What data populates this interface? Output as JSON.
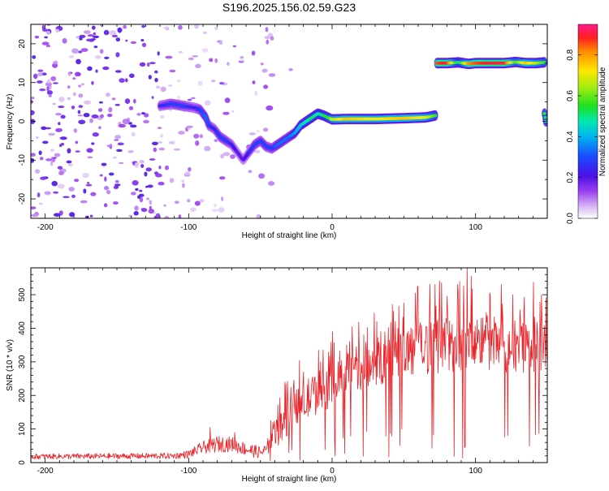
{
  "title": "S196.2025.156.02.59.G23",
  "chart_data": [
    {
      "type": "heatmap",
      "xlabel": "Height of straight line (km)",
      "ylabel": "Frequency (Hz)",
      "xlim": [
        -210,
        150
      ],
      "ylim": [
        -25,
        25
      ],
      "x_ticks": [
        -200,
        -100,
        0,
        100
      ],
      "x_minor_step": 10,
      "y_ticks": [
        -20,
        -10,
        0,
        10,
        20
      ],
      "y_minor_step": 5,
      "colorbar": {
        "label": "Normalized spectral amplitude",
        "range": [
          0.0,
          0.95
        ],
        "ticks": [
          0.0,
          0.2,
          0.4,
          0.6,
          0.8
        ],
        "colormap": "rainbow (white-violet-blue-cyan-green-yellow-red)"
      },
      "traces": [
        {
          "points": [
            [
              -120,
              4
            ],
            [
              -112,
              4.5
            ],
            [
              -104,
              4
            ],
            [
              -96,
              3.5
            ],
            [
              -92,
              3
            ],
            [
              -88,
              1
            ],
            [
              -86,
              -1
            ],
            [
              -82,
              -2
            ],
            [
              -78,
              -4
            ],
            [
              -74,
              -5
            ],
            [
              -70,
              -6
            ],
            [
              -66,
              -8
            ],
            [
              -62,
              -10
            ],
            [
              -58,
              -8
            ],
            [
              -54,
              -6
            ],
            [
              -50,
              -5
            ],
            [
              -46,
              -6.5
            ],
            [
              -42,
              -7
            ],
            [
              -38,
              -6
            ],
            [
              -34,
              -5
            ],
            [
              -30,
              -4
            ],
            [
              -26,
              -3
            ],
            [
              -22,
              -1
            ],
            [
              -18,
              0
            ],
            [
              -14,
              1
            ],
            [
              -10,
              2
            ],
            [
              -6,
              1.5
            ],
            [
              -2,
              0.8
            ],
            [
              0,
              0.5
            ],
            [
              10,
              0.6
            ],
            [
              30,
              0.6
            ],
            [
              50,
              0.8
            ],
            [
              65,
              1
            ],
            [
              72,
              1.5
            ]
          ],
          "amplitude": [
            0.25,
            0.3,
            0.3,
            0.25,
            0.3,
            0.35,
            0.3,
            0.25,
            0.3,
            0.3,
            0.25,
            0.2,
            0.2,
            0.25,
            0.3,
            0.3,
            0.3,
            0.3,
            0.35,
            0.35,
            0.35,
            0.4,
            0.45,
            0.5,
            0.55,
            0.5,
            0.55,
            0.6,
            0.7,
            0.8,
            0.75,
            0.8,
            0.75,
            0.6
          ]
        },
        {
          "points": [
            [
              73,
              15
            ],
            [
              80,
              15
            ],
            [
              88,
              15.2
            ],
            [
              95,
              14.8
            ],
            [
              100,
              15
            ],
            [
              110,
              15
            ],
            [
              120,
              15
            ],
            [
              128,
              15.3
            ],
            [
              135,
              15
            ],
            [
              142,
              15
            ],
            [
              148,
              15.2
            ]
          ],
          "amplitude": [
            0.9,
            0.95,
            0.5,
            0.85,
            0.9,
            0.95,
            0.95,
            0.6,
            0.8,
            0.7,
            0.6
          ]
        },
        {
          "points": [
            [
              148,
              2
            ],
            [
              149,
              0
            ]
          ],
          "amplitude": [
            0.6,
            0.5
          ]
        }
      ]
    },
    {
      "type": "line",
      "xlabel": "Height of straight line (km)",
      "ylabel": "SNR (10 * v/v)",
      "xlim": [
        -210,
        150
      ],
      "ylim": [
        0,
        580
      ],
      "x_ticks": [
        -200,
        -100,
        0,
        100
      ],
      "x_minor_step": 10,
      "y_ticks": [
        0,
        100,
        200,
        300,
        400,
        500
      ],
      "y_minor_step": 20,
      "series": [
        {
          "color": "#e8242a",
          "envelope": [
            [
              -210,
              18
            ],
            [
              -110,
              20
            ],
            [
              -100,
              25
            ],
            [
              -90,
              45
            ],
            [
              -80,
              55
            ],
            [
              -70,
              55
            ],
            [
              -60,
              40
            ],
            [
              -50,
              30
            ],
            [
              -45,
              40
            ],
            [
              -40,
              80
            ],
            [
              -35,
              110
            ],
            [
              -30,
              140
            ],
            [
              -20,
              180
            ],
            [
              -10,
              210
            ],
            [
              0,
              230
            ],
            [
              10,
              260
            ],
            [
              20,
              285
            ],
            [
              30,
              300
            ],
            [
              40,
              315
            ],
            [
              50,
              330
            ],
            [
              60,
              340
            ],
            [
              70,
              345
            ],
            [
              80,
              350
            ],
            [
              90,
              355
            ],
            [
              100,
              355
            ],
            [
              110,
              355
            ],
            [
              120,
              350
            ],
            [
              130,
              350
            ],
            [
              140,
              350
            ],
            [
              150,
              350
            ]
          ],
          "spread": [
            [
              -210,
              8
            ],
            [
              -110,
              9
            ],
            [
              -100,
              12
            ],
            [
              -80,
              25
            ],
            [
              -60,
              20
            ],
            [
              -45,
              18
            ],
            [
              -40,
              40
            ],
            [
              -30,
              55
            ],
            [
              -10,
              65
            ],
            [
              20,
              70
            ],
            [
              50,
              80
            ],
            [
              100,
              85
            ],
            [
              150,
              85
            ]
          ],
          "peaks": [
            [
              -85,
              105
            ],
            [
              -68,
              90
            ],
            [
              -33,
              240
            ],
            [
              -20,
              270
            ],
            [
              -8,
              300
            ],
            [
              10,
              350
            ],
            [
              22,
              380
            ],
            [
              34,
              390
            ],
            [
              44,
              420
            ],
            [
              50,
              475
            ],
            [
              58,
              505
            ],
            [
              68,
              465
            ],
            [
              80,
              495
            ],
            [
              88,
              510
            ],
            [
              94,
              580
            ],
            [
              97,
              555
            ],
            [
              104,
              430
            ],
            [
              110,
              505
            ],
            [
              118,
              530
            ],
            [
              126,
              500
            ],
            [
              135,
              410
            ],
            [
              146,
              500
            ],
            [
              149,
              490
            ]
          ]
        }
      ]
    }
  ]
}
